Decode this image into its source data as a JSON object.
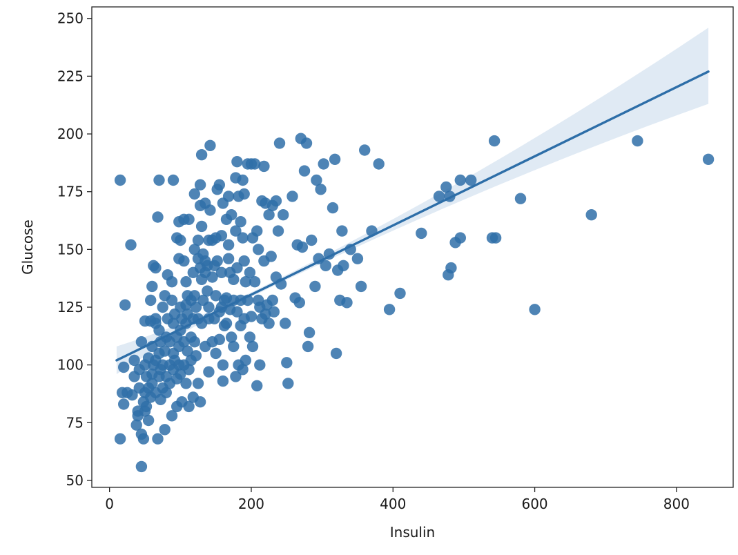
{
  "chart_data": {
    "type": "scatter",
    "title": "",
    "xlabel": "Insulin",
    "ylabel": "Glucose",
    "xlim": [
      -25,
      880
    ],
    "ylim": [
      47,
      255
    ],
    "xticks": [
      0,
      200,
      400,
      600,
      800
    ],
    "yticks": [
      50,
      75,
      100,
      125,
      150,
      175,
      200,
      225,
      250
    ],
    "grid": false,
    "legend": "none",
    "colors": {
      "points": "#2f6fa8",
      "line": "#2d6ea8",
      "band": "#dbe6f2",
      "axes": "#222222"
    },
    "series": [
      {
        "points": [
          [
            15,
            180
          ],
          [
            15,
            68
          ],
          [
            18,
            88
          ],
          [
            20,
            99
          ],
          [
            20,
            83
          ],
          [
            22,
            126
          ],
          [
            25,
            88
          ],
          [
            30,
            152
          ],
          [
            32,
            87
          ],
          [
            35,
            102
          ],
          [
            35,
            95
          ],
          [
            38,
            74
          ],
          [
            40,
            80
          ],
          [
            40,
            78
          ],
          [
            42,
            90
          ],
          [
            42,
            98
          ],
          [
            45,
            110
          ],
          [
            45,
            56
          ],
          [
            45,
            70
          ],
          [
            48,
            84
          ],
          [
            48,
            68
          ],
          [
            50,
            119
          ],
          [
            50,
            100
          ],
          [
            50,
            88
          ],
          [
            50,
            80
          ],
          [
            52,
            95
          ],
          [
            52,
            82
          ],
          [
            55,
            76
          ],
          [
            55,
            103
          ],
          [
            55,
            90
          ],
          [
            58,
            119
          ],
          [
            58,
            128
          ],
          [
            58,
            86
          ],
          [
            60,
            134
          ],
          [
            60,
            108
          ],
          [
            60,
            96
          ],
          [
            60,
            92
          ],
          [
            62,
            143
          ],
          [
            62,
            100
          ],
          [
            65,
            142
          ],
          [
            65,
            120
          ],
          [
            65,
            118
          ],
          [
            65,
            102
          ],
          [
            65,
            88
          ],
          [
            68,
            164
          ],
          [
            68,
            68
          ],
          [
            70,
            180
          ],
          [
            70,
            115
          ],
          [
            70,
            105
          ],
          [
            70,
            95
          ],
          [
            72,
            110
          ],
          [
            72,
            98
          ],
          [
            72,
            85
          ],
          [
            75,
            125
          ],
          [
            75,
            100
          ],
          [
            75,
            90
          ],
          [
            78,
            130
          ],
          [
            78,
            106
          ],
          [
            78,
            72
          ],
          [
            80,
            95
          ],
          [
            80,
            88
          ],
          [
            80,
            112
          ],
          [
            82,
            139
          ],
          [
            82,
            120
          ],
          [
            85,
            100
          ],
          [
            85,
            110
          ],
          [
            85,
            92
          ],
          [
            88,
            136
          ],
          [
            88,
            128
          ],
          [
            88,
            78
          ],
          [
            90,
            180
          ],
          [
            90,
            118
          ],
          [
            90,
            105
          ],
          [
            90,
            98
          ],
          [
            92,
            122
          ],
          [
            92,
            102
          ],
          [
            95,
            155
          ],
          [
            95,
            112
          ],
          [
            95,
            94
          ],
          [
            95,
            82
          ],
          [
            98,
            162
          ],
          [
            98,
            146
          ],
          [
            98,
            108
          ],
          [
            98,
            100
          ],
          [
            100,
            154
          ],
          [
            100,
            125
          ],
          [
            100,
            115
          ],
          [
            100,
            96
          ],
          [
            102,
            120
          ],
          [
            102,
            84
          ],
          [
            105,
            163
          ],
          [
            105,
            145
          ],
          [
            105,
            110
          ],
          [
            105,
            100
          ],
          [
            108,
            136
          ],
          [
            108,
            126
          ],
          [
            108,
            118
          ],
          [
            108,
            92
          ],
          [
            110,
            130
          ],
          [
            110,
            122
          ],
          [
            110,
            106
          ],
          [
            112,
            163
          ],
          [
            112,
            98
          ],
          [
            112,
            82
          ],
          [
            115,
            128
          ],
          [
            115,
            112
          ],
          [
            115,
            102
          ],
          [
            118,
            140
          ],
          [
            118,
            120
          ],
          [
            118,
            86
          ],
          [
            120,
            174
          ],
          [
            120,
            150
          ],
          [
            120,
            130
          ],
          [
            120,
            110
          ],
          [
            122,
            125
          ],
          [
            122,
            104
          ],
          [
            125,
            154
          ],
          [
            125,
            146
          ],
          [
            125,
            120
          ],
          [
            125,
            92
          ],
          [
            128,
            178
          ],
          [
            128,
            169
          ],
          [
            128,
            142
          ],
          [
            128,
            84
          ],
          [
            130,
            191
          ],
          [
            130,
            160
          ],
          [
            130,
            137
          ],
          [
            130,
            118
          ],
          [
            132,
            148
          ],
          [
            132,
            128
          ],
          [
            135,
            170
          ],
          [
            135,
            145
          ],
          [
            135,
            140
          ],
          [
            135,
            108
          ],
          [
            138,
            143
          ],
          [
            138,
            132
          ],
          [
            140,
            154
          ],
          [
            140,
            125
          ],
          [
            140,
            120
          ],
          [
            140,
            97
          ],
          [
            142,
            195
          ],
          [
            142,
            167
          ],
          [
            145,
            154
          ],
          [
            145,
            138
          ],
          [
            145,
            110
          ],
          [
            148,
            143
          ],
          [
            148,
            120
          ],
          [
            150,
            155
          ],
          [
            150,
            130
          ],
          [
            150,
            105
          ],
          [
            152,
            176
          ],
          [
            152,
            145
          ],
          [
            155,
            178
          ],
          [
            155,
            123
          ],
          [
            155,
            111
          ],
          [
            158,
            156
          ],
          [
            158,
            140
          ],
          [
            158,
            125
          ],
          [
            160,
            170
          ],
          [
            160,
            100
          ],
          [
            160,
            93
          ],
          [
            162,
            128
          ],
          [
            162,
            117
          ],
          [
            165,
            163
          ],
          [
            165,
            129
          ],
          [
            165,
            118
          ],
          [
            168,
            173
          ],
          [
            168,
            152
          ],
          [
            168,
            146
          ],
          [
            170,
            140
          ],
          [
            170,
            124
          ],
          [
            172,
            165
          ],
          [
            172,
            112
          ],
          [
            175,
            137
          ],
          [
            175,
            128
          ],
          [
            175,
            108
          ],
          [
            178,
            181
          ],
          [
            178,
            158
          ],
          [
            178,
            95
          ],
          [
            180,
            188
          ],
          [
            180,
            142
          ],
          [
            180,
            123
          ],
          [
            182,
            173
          ],
          [
            182,
            100
          ],
          [
            185,
            162
          ],
          [
            185,
            128
          ],
          [
            185,
            117
          ],
          [
            188,
            180
          ],
          [
            188,
            155
          ],
          [
            188,
            98
          ],
          [
            190,
            174
          ],
          [
            190,
            145
          ],
          [
            190,
            120
          ],
          [
            192,
            136
          ],
          [
            192,
            102
          ],
          [
            195,
            187
          ],
          [
            195,
            128
          ],
          [
            198,
            140
          ],
          [
            198,
            112
          ],
          [
            200,
            187
          ],
          [
            200,
            121
          ],
          [
            202,
            155
          ],
          [
            202,
            108
          ],
          [
            205,
            187
          ],
          [
            205,
            136
          ],
          [
            208,
            158
          ],
          [
            208,
            91
          ],
          [
            210,
            150
          ],
          [
            210,
            128
          ],
          [
            212,
            125
          ],
          [
            212,
            100
          ],
          [
            215,
            171
          ],
          [
            215,
            120
          ],
          [
            218,
            186
          ],
          [
            218,
            145
          ],
          [
            220,
            170
          ],
          [
            220,
            122
          ],
          [
            222,
            126
          ],
          [
            225,
            165
          ],
          [
            225,
            118
          ],
          [
            228,
            147
          ],
          [
            230,
            169
          ],
          [
            230,
            128
          ],
          [
            232,
            123
          ],
          [
            235,
            171
          ],
          [
            235,
            138
          ],
          [
            238,
            158
          ],
          [
            240,
            196
          ],
          [
            242,
            135
          ],
          [
            245,
            165
          ],
          [
            248,
            118
          ],
          [
            250,
            101
          ],
          [
            252,
            92
          ],
          [
            258,
            173
          ],
          [
            262,
            129
          ],
          [
            265,
            152
          ],
          [
            268,
            127
          ],
          [
            270,
            198
          ],
          [
            272,
            151
          ],
          [
            275,
            184
          ],
          [
            278,
            196
          ],
          [
            280,
            108
          ],
          [
            282,
            114
          ],
          [
            285,
            154
          ],
          [
            290,
            134
          ],
          [
            292,
            180
          ],
          [
            295,
            146
          ],
          [
            298,
            176
          ],
          [
            302,
            187
          ],
          [
            305,
            143
          ],
          [
            310,
            148
          ],
          [
            315,
            168
          ],
          [
            318,
            189
          ],
          [
            320,
            105
          ],
          [
            322,
            141
          ],
          [
            325,
            128
          ],
          [
            328,
            158
          ],
          [
            330,
            143
          ],
          [
            335,
            127
          ],
          [
            340,
            150
          ],
          [
            350,
            146
          ],
          [
            355,
            134
          ],
          [
            360,
            193
          ],
          [
            370,
            158
          ],
          [
            380,
            187
          ],
          [
            395,
            124
          ],
          [
            410,
            131
          ],
          [
            440,
            157
          ],
          [
            465,
            173
          ],
          [
            475,
            177
          ],
          [
            478,
            139
          ],
          [
            480,
            173
          ],
          [
            482,
            142
          ],
          [
            488,
            153
          ],
          [
            495,
            155
          ],
          [
            495,
            180
          ],
          [
            510,
            180
          ],
          [
            540,
            155
          ],
          [
            543,
            197
          ],
          [
            545,
            155
          ],
          [
            580,
            172
          ],
          [
            600,
            124
          ],
          [
            680,
            165
          ],
          [
            745,
            197
          ],
          [
            845,
            189
          ]
        ]
      }
    ],
    "regression": {
      "x": [
        10,
        845
      ],
      "y": [
        102,
        227
      ],
      "ci_lower": [
        96,
        213
      ],
      "ci_upper": [
        108,
        246
      ]
    }
  }
}
